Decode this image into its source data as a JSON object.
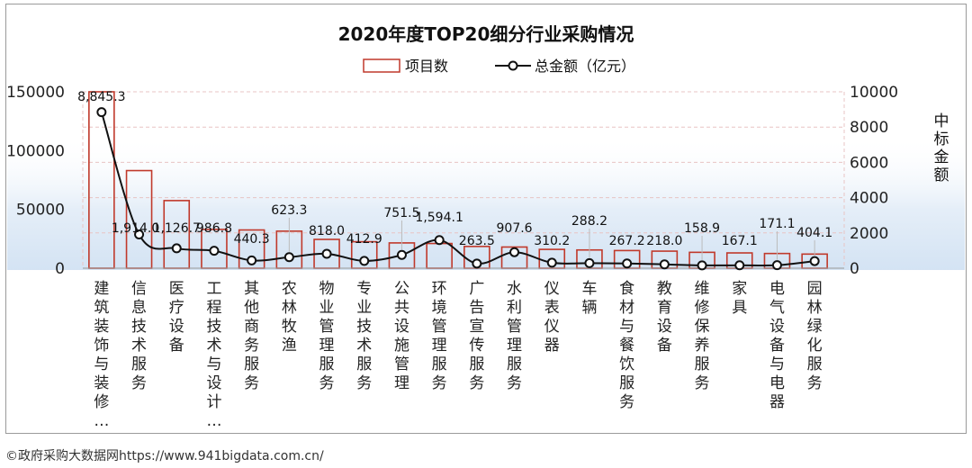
{
  "source": "©政府采购大数据网https://www.941bigdata.com.cn/",
  "colors": {
    "bar_stroke": "#c0392b",
    "line": "#111111",
    "gradient": "#cfe0f2",
    "grid": "#e8c4c4"
  },
  "chart_data": {
    "type": "bar+line",
    "title": "2020年度TOP20细分行业采购情况",
    "legend": {
      "bar_label": "项目数",
      "line_label": "总金额（亿元）",
      "position": "top"
    },
    "y2label": "中标金额",
    "categories": [
      "建筑装饰与装修…",
      "信息技术服务",
      "医疗设备",
      "工程技术与设计…",
      "其他商务服务",
      "农林牧渔",
      "物业管理服务",
      "专业技术服务",
      "公共设施管理",
      "环境管理服务",
      "广告宣传服务",
      "水利管理服务",
      "仪表仪器",
      "车辆",
      "食材与餐饮服务",
      "教育设备",
      "维修保养服务",
      "家具",
      "电气设备与电器",
      "园林绿化服务"
    ],
    "series": [
      {
        "name": "项目数",
        "axis": "left",
        "type": "bar",
        "values": [
          150000,
          83000,
          57500,
          33000,
          32500,
          31500,
          24500,
          22500,
          21500,
          21000,
          18500,
          18000,
          16000,
          15500,
          15000,
          14500,
          13500,
          13000,
          12500,
          12000
        ]
      },
      {
        "name": "总金额（亿元）",
        "axis": "right",
        "type": "line",
        "values": [
          8845.3,
          1914.0,
          1126.7,
          986.8,
          440.3,
          623.3,
          818.0,
          412.9,
          751.5,
          1594.1,
          263.5,
          907.6,
          310.2,
          288.2,
          267.2,
          218.0,
          158.9,
          167.1,
          171.1,
          404.1
        ],
        "labels": [
          "8,845.3",
          "1,914.0",
          "1,126.7",
          "986.8",
          "440.3",
          "623.3",
          "818.0",
          "412.9",
          "751.5",
          "1,594.1",
          "263.5",
          "907.6",
          "310.2",
          "288.2",
          "267.2",
          "218.0",
          "158.9",
          "167.1",
          "171.1",
          "404.1"
        ]
      }
    ],
    "yticks": [
      "0",
      "50000",
      "100000",
      "150000"
    ],
    "ylim": [
      0,
      150000
    ],
    "y2ticks": [
      "0",
      "2000",
      "4000",
      "6000",
      "8000",
      "10000"
    ],
    "y2lim": [
      0,
      10000
    ]
  }
}
